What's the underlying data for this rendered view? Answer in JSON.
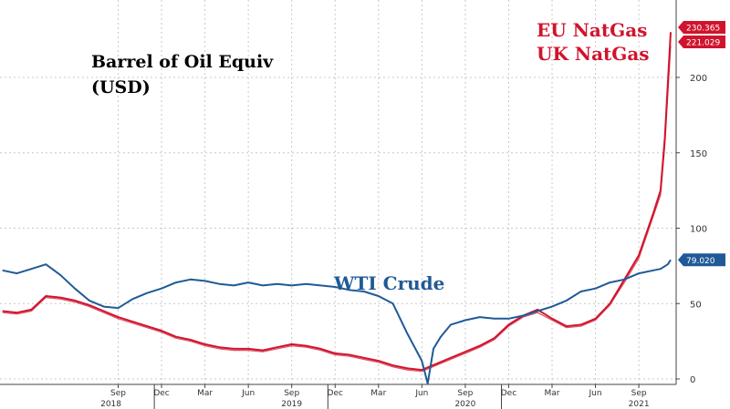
{
  "chart_data": {
    "type": "line",
    "title": "Barrel of Oil Equiv",
    "title_line2": "(USD)",
    "ylim": [
      -4,
      232
    ],
    "yticks": [
      0,
      50,
      100,
      150,
      200
    ],
    "grid": true,
    "x_month_ticks": [
      "Sep",
      "Dec",
      "Mar",
      "Jun",
      "Sep",
      "Dec",
      "Mar",
      "Jun",
      "Sep",
      "Dec",
      "Mar",
      "Jun",
      "Sep"
    ],
    "x_month_index": [
      8,
      11,
      14,
      17,
      20,
      23,
      26,
      29,
      32,
      35,
      38,
      41,
      44
    ],
    "year_labels": [
      "2018",
      "2019",
      "2020",
      "2021"
    ],
    "year_label_index": [
      7.5,
      20,
      32,
      44
    ],
    "year_divider_index": [
      10.5,
      22.5,
      34.5
    ],
    "xlim_index": [
      0,
      46.2
    ],
    "x_unit": "months since Jul 2018",
    "annotations": {
      "eu": "EU NatGas",
      "uk": "UK NatGas",
      "wti": "WTI Crude"
    },
    "series": [
      {
        "name": "WTI Crude",
        "color": "#1f5a96",
        "last_label": "79.020",
        "points": [
          [
            0,
            72
          ],
          [
            1,
            70
          ],
          [
            2,
            73
          ],
          [
            3,
            76
          ],
          [
            4,
            69
          ],
          [
            5,
            60
          ],
          [
            6,
            52
          ],
          [
            7,
            48
          ],
          [
            8,
            47
          ],
          [
            9,
            53
          ],
          [
            10,
            57
          ],
          [
            11,
            60
          ],
          [
            12,
            64
          ],
          [
            13,
            66
          ],
          [
            14,
            65
          ],
          [
            15,
            63
          ],
          [
            16,
            62
          ],
          [
            17,
            64
          ],
          [
            18,
            62
          ],
          [
            19,
            63
          ],
          [
            20,
            62
          ],
          [
            21,
            63
          ],
          [
            22,
            62
          ],
          [
            23,
            61
          ],
          [
            24,
            59
          ],
          [
            25,
            58
          ],
          [
            26,
            55
          ],
          [
            27,
            50
          ],
          [
            28,
            30
          ],
          [
            29,
            12
          ],
          [
            29.4,
            -3
          ],
          [
            29.8,
            20
          ],
          [
            30.3,
            28
          ],
          [
            31,
            36
          ],
          [
            32,
            39
          ],
          [
            33,
            41
          ],
          [
            34,
            40
          ],
          [
            35,
            40
          ],
          [
            36,
            42
          ],
          [
            37,
            45
          ],
          [
            38,
            48
          ],
          [
            39,
            52
          ],
          [
            40,
            58
          ],
          [
            41,
            60
          ],
          [
            42,
            64
          ],
          [
            43,
            66
          ],
          [
            44,
            70
          ],
          [
            45,
            72
          ],
          [
            45.5,
            73
          ],
          [
            46,
            76
          ],
          [
            46.2,
            79
          ]
        ]
      },
      {
        "name": "EU NatGas",
        "color": "#d0142d",
        "last_label": "230.365",
        "points": [
          [
            0,
            45
          ],
          [
            1,
            44
          ],
          [
            2,
            46
          ],
          [
            3,
            55
          ],
          [
            4,
            54
          ],
          [
            5,
            52
          ],
          [
            6,
            49
          ],
          [
            7,
            45
          ],
          [
            8,
            41
          ],
          [
            9,
            38
          ],
          [
            10,
            35
          ],
          [
            11,
            32
          ],
          [
            12,
            28
          ],
          [
            13,
            26
          ],
          [
            14,
            23
          ],
          [
            15,
            21
          ],
          [
            16,
            20
          ],
          [
            17,
            20
          ],
          [
            18,
            19
          ],
          [
            19,
            21
          ],
          [
            20,
            23
          ],
          [
            21,
            22
          ],
          [
            22,
            20
          ],
          [
            23,
            17
          ],
          [
            24,
            16
          ],
          [
            25,
            14
          ],
          [
            26,
            12
          ],
          [
            27,
            9
          ],
          [
            28,
            7
          ],
          [
            29,
            6
          ],
          [
            30,
            10
          ],
          [
            31,
            14
          ],
          [
            32,
            18
          ],
          [
            33,
            22
          ],
          [
            34,
            27
          ],
          [
            35,
            36
          ],
          [
            36,
            42
          ],
          [
            37,
            46
          ],
          [
            38,
            40
          ],
          [
            39,
            35
          ],
          [
            40,
            36
          ],
          [
            41,
            40
          ],
          [
            42,
            50
          ],
          [
            43,
            66
          ],
          [
            44,
            82
          ],
          [
            45,
            110
          ],
          [
            45.5,
            125
          ],
          [
            45.8,
            160
          ],
          [
            46.2,
            230
          ]
        ]
      },
      {
        "name": "UK NatGas",
        "color": "#d0142d",
        "last_label": "221.029",
        "points": [
          [
            0,
            44
          ],
          [
            1,
            43
          ],
          [
            2,
            45
          ],
          [
            3,
            54
          ],
          [
            4,
            53
          ],
          [
            5,
            51
          ],
          [
            6,
            48
          ],
          [
            7,
            44
          ],
          [
            8,
            40
          ],
          [
            9,
            37
          ],
          [
            10,
            34
          ],
          [
            11,
            31
          ],
          [
            12,
            27
          ],
          [
            13,
            25
          ],
          [
            14,
            22
          ],
          [
            15,
            20
          ],
          [
            16,
            19
          ],
          [
            17,
            19
          ],
          [
            18,
            18
          ],
          [
            19,
            20
          ],
          [
            20,
            22
          ],
          [
            21,
            21
          ],
          [
            22,
            19
          ],
          [
            23,
            16
          ],
          [
            24,
            15
          ],
          [
            25,
            13
          ],
          [
            26,
            11
          ],
          [
            27,
            8
          ],
          [
            28,
            6
          ],
          [
            29,
            5
          ],
          [
            30,
            9
          ],
          [
            31,
            13
          ],
          [
            32,
            17
          ],
          [
            33,
            21
          ],
          [
            34,
            26
          ],
          [
            35,
            35
          ],
          [
            36,
            41
          ],
          [
            37,
            44
          ],
          [
            38,
            39
          ],
          [
            39,
            34
          ],
          [
            40,
            35
          ],
          [
            41,
            39
          ],
          [
            42,
            49
          ],
          [
            43,
            64
          ],
          [
            44,
            80
          ],
          [
            45,
            108
          ],
          [
            45.5,
            122
          ],
          [
            45.8,
            155
          ],
          [
            46.2,
            221
          ]
        ]
      }
    ]
  }
}
